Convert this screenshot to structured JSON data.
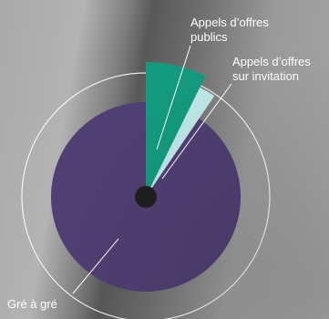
{
  "chart_data": {
    "type": "pie",
    "slices": [
      {
        "label": "Appels d'offres publics",
        "value": 7.3,
        "color": "#139a7e"
      },
      {
        "label": "Appels d'offres sur invitation",
        "value": 2.2,
        "color": "#bfe7e7"
      },
      {
        "label": "Gré à gré",
        "value": 90.5,
        "color": "#4f3f72"
      }
    ],
    "title": "",
    "legend": "none"
  },
  "labels": {
    "publics": [
      "Appels d’offres",
      "publics"
    ],
    "invitation": [
      "Appels d’offres",
      "sur invitation"
    ],
    "gre": "Gré à gré"
  },
  "colors": {
    "ring": "#ffffff",
    "center": "#1f1f1f",
    "leader": "#ffffff"
  }
}
